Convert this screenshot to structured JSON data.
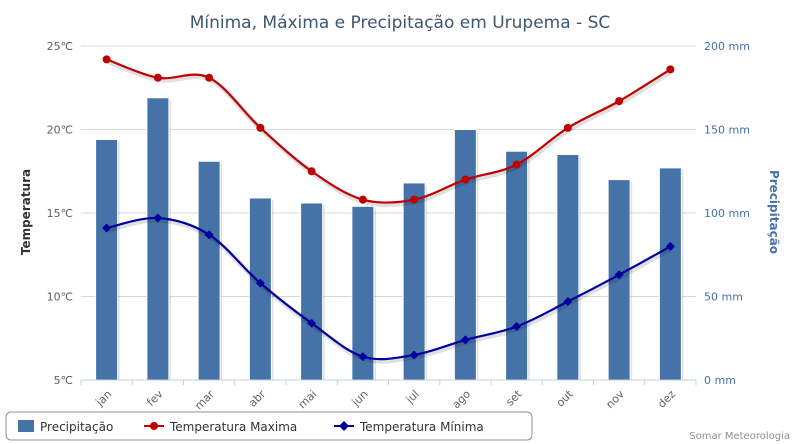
{
  "chart_data": {
    "type": "bar+line",
    "title": "Mínima, Máxima e Precipitação em Urupema - SC",
    "categories": [
      "jan",
      "fev",
      "mar",
      "abr",
      "mai",
      "jun",
      "jul",
      "ago",
      "set",
      "out",
      "nov",
      "dez"
    ],
    "y_left": {
      "label": "Temperatura",
      "ylim": [
        5,
        25
      ],
      "ticks": [
        "5℃",
        "10℃",
        "15℃",
        "20℃",
        "25℃"
      ],
      "tick_values": [
        5,
        10,
        15,
        20,
        25
      ]
    },
    "y_right": {
      "label": "Precipitação",
      "ylim": [
        0,
        200
      ],
      "ticks": [
        "0 mm",
        "50 mm",
        "100 mm",
        "150 mm",
        "200 mm"
      ],
      "tick_values": [
        0,
        50,
        100,
        150,
        200
      ]
    },
    "series": [
      {
        "name": "Precipitação",
        "type": "bar",
        "axis": "right",
        "color": "#4572a7",
        "values": [
          144,
          169,
          131,
          109,
          106,
          104,
          118,
          150,
          137,
          135,
          120,
          127
        ]
      },
      {
        "name": "Temperatura Maxima",
        "type": "line",
        "axis": "left",
        "color": "#c00000",
        "marker": "circle",
        "values": [
          24.2,
          23.1,
          23.1,
          20.1,
          17.5,
          15.8,
          15.8,
          17.0,
          17.9,
          20.1,
          21.7,
          23.6
        ]
      },
      {
        "name": "Temperatura Mínima",
        "type": "line",
        "axis": "left",
        "color": "#0000a0",
        "marker": "diamond",
        "values": [
          14.1,
          14.7,
          13.7,
          10.8,
          8.4,
          6.4,
          6.5,
          7.4,
          8.2,
          9.7,
          11.3,
          13.0
        ]
      }
    ],
    "legend": [
      "Precipitação",
      "Temperatura Maxima",
      "Temperatura Mínima"
    ],
    "legend_position": "bottom-left",
    "credits": "Somar Meteorologia"
  }
}
